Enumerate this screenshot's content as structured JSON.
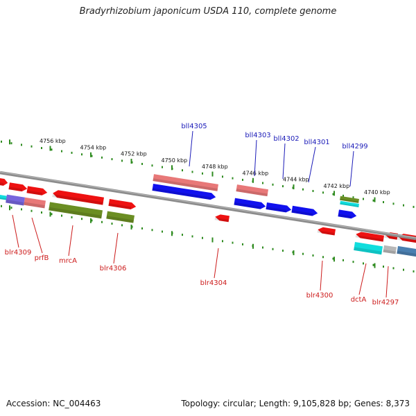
{
  "title": "Bradyrhizobium japonicum USDA 110, complete genome",
  "accession": "Accession: NC_004463",
  "topology": "Topology: circular; Length: 9,105,828 bp; Genes: 8,373",
  "colors": {
    "backbone": "#8c8c8c",
    "tick": "#2e8b1f",
    "label_top": "#1a1ab8",
    "label_bottom": "#cc1a1a",
    "red": "#ee1111",
    "pink": "#e87878",
    "blue": "#1111ee",
    "olive": "#6b8e23",
    "cyan": "#11dddd",
    "purple": "#7766dd",
    "gray": "#b8b8b8",
    "steel": "#4a7fb0"
  },
  "scale_labels": [
    "4756 kbp",
    "4754 kbp",
    "4752 kbp",
    "4750 kbp",
    "4748 kbp",
    "4746 kbp",
    "4744 kbp",
    "4742 kbp",
    "4740 kbp"
  ],
  "top_gene_labels": [
    "bll4305",
    "bll4303",
    "bll4302",
    "bll4301",
    "bll4299"
  ],
  "bottom_gene_labels": [
    "blr4309",
    "prfB",
    "mrcA",
    "blr4306",
    "blr4304",
    "blr4300",
    "dctA",
    "blr4297"
  ]
}
